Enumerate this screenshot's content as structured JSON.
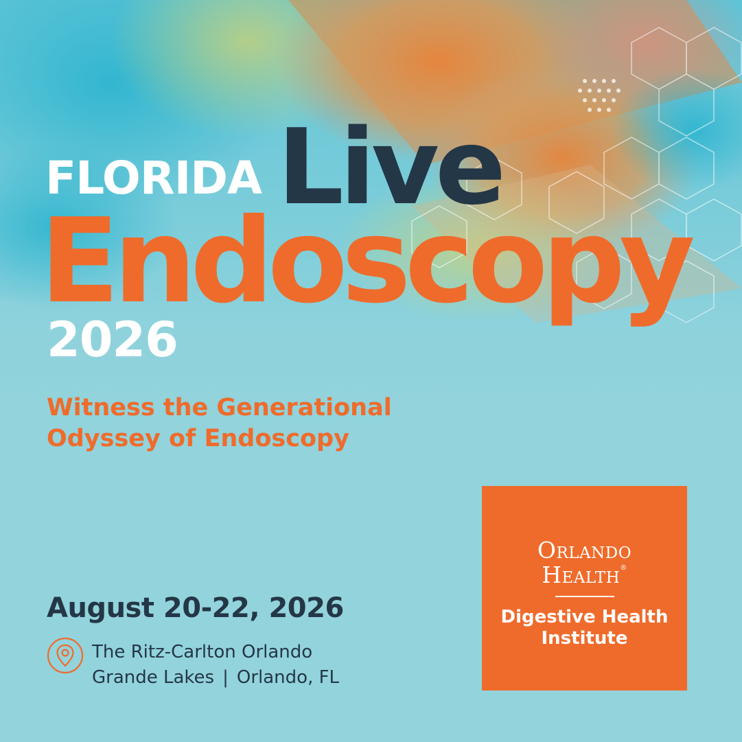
{
  "event": {
    "title_prefix": "FLORIDA",
    "title_word1": "Live",
    "title_word2": "Endoscopy",
    "year": "2026",
    "tagline": {
      "line1": "Witness the Generational",
      "line2": "Odyssey of Endoscopy"
    },
    "dates": "August 20-22, 2026",
    "venue": {
      "line1": "The Ritz-Carlton Orlando",
      "line2_place": "Grande Lakes",
      "separator": "|",
      "line2_city": "Orlando, FL"
    }
  },
  "logo": {
    "word1": "Orlando",
    "word2": "Health",
    "registered": "®",
    "department_line1": "Digestive Health",
    "department_line2": "Institute"
  },
  "icons": {
    "location": "location-pin-icon"
  },
  "colors": {
    "background": "#93d3dc",
    "accent_orange": "#ef6b2b",
    "navy": "#243746",
    "white": "#ffffff"
  }
}
